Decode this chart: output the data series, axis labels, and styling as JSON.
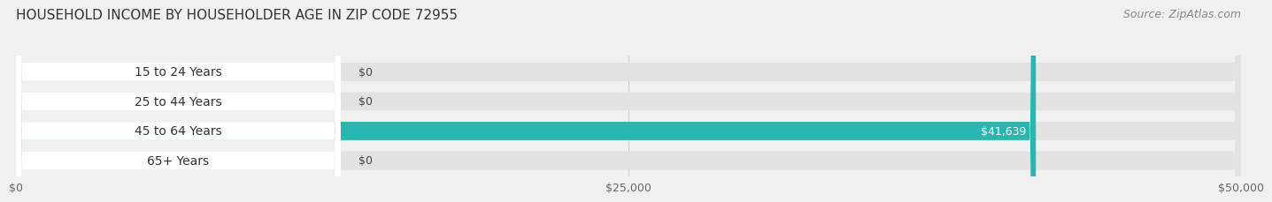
{
  "title": "HOUSEHOLD INCOME BY HOUSEHOLDER AGE IN ZIP CODE 72955",
  "source": "Source: ZipAtlas.com",
  "categories": [
    "15 to 24 Years",
    "25 to 44 Years",
    "45 to 64 Years",
    "65+ Years"
  ],
  "values": [
    0,
    0,
    41639,
    0
  ],
  "bar_colors": [
    "#a8c8e0",
    "#cbb8d4",
    "#29b5b0",
    "#b0b8e0"
  ],
  "label_colors": [
    "#555555",
    "#555555",
    "#ffffff",
    "#555555"
  ],
  "bar_labels": [
    "$0",
    "$0",
    "$41,639",
    "$0"
  ],
  "xlim": [
    0,
    50000
  ],
  "xticks": [
    0,
    25000,
    50000
  ],
  "xticklabels": [
    "$0",
    "$25,000",
    "$50,000"
  ],
  "background_color": "#f0f0f0",
  "bar_bg_color": "#e2e2e2",
  "title_fontsize": 11,
  "source_fontsize": 9,
  "label_fontsize": 9,
  "tick_fontsize": 9,
  "category_fontsize": 10,
  "bar_height": 0.62,
  "fig_width": 14.06,
  "fig_height": 2.33
}
